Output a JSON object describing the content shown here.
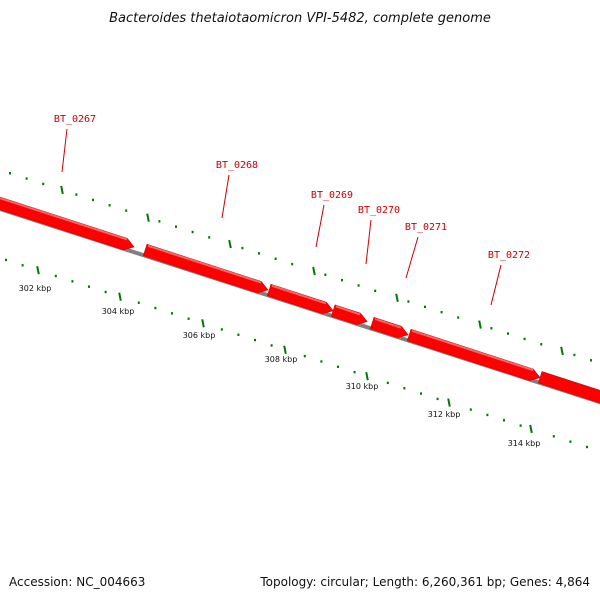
{
  "title": "Bacteroides thetaiotaomicron VPI-5482, complete genome",
  "colors": {
    "gene_fill": "#ff0000",
    "gene_top": "#ff7a7a",
    "gene_label": "#cc0000",
    "backbone": "#7f7f7f",
    "tick": "#007700"
  },
  "genes": [
    {
      "name": "BT_0267"
    },
    {
      "name": "BT_0268"
    },
    {
      "name": "BT_0269"
    },
    {
      "name": "BT_0270"
    },
    {
      "name": "BT_0271"
    },
    {
      "name": "BT_0272"
    }
  ],
  "scale_labels": [
    "302 kbp",
    "304 kbp",
    "306 kbp",
    "308 kbp",
    "310 kbp",
    "312 kbp",
    "314 kbp"
  ],
  "footer": {
    "accession": "Accession: NC_004663",
    "summary": "Topology: circular; Length: 6,260,361 bp; Genes: 4,864"
  }
}
